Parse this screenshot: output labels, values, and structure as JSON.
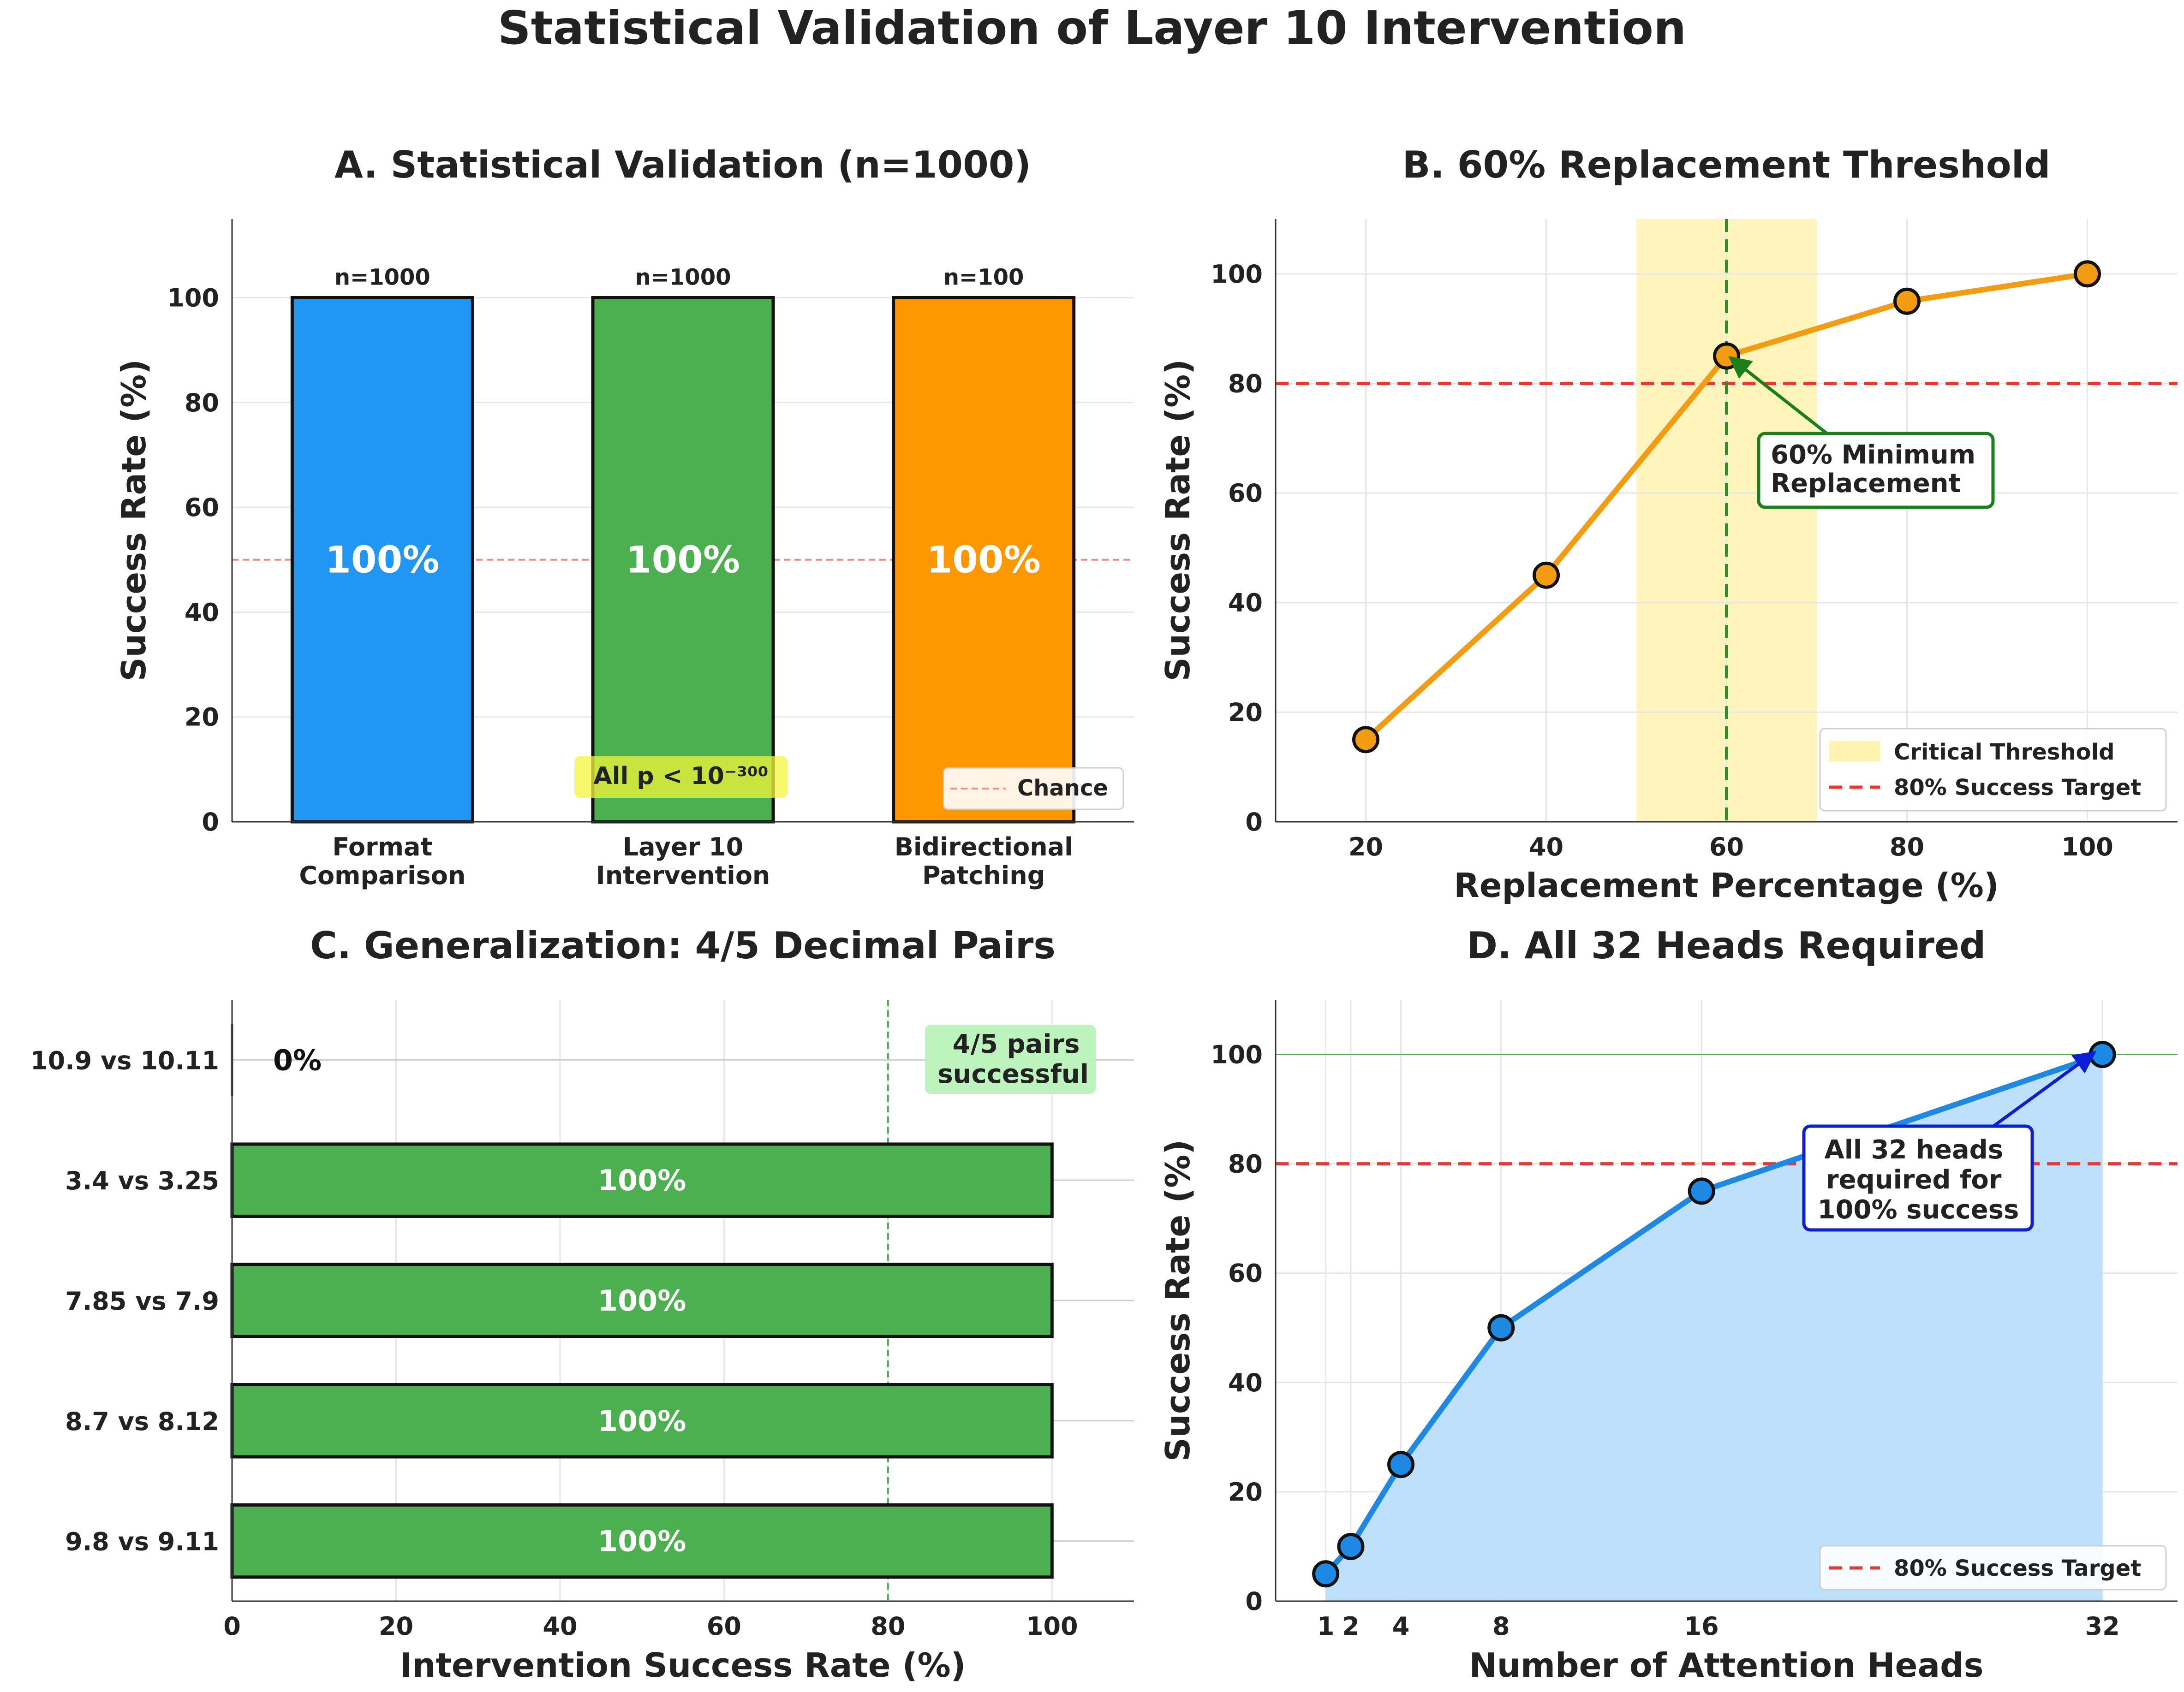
{
  "suptitle": "Statistical Validation of Layer 10 Intervention",
  "colors": {
    "blue": "#2196F3",
    "green": "#4CAF50",
    "orange": "#FF9800",
    "red_dashed": "#E53935",
    "threshold_fill": "#FFF3B0",
    "area_fill": "#BBDEFB",
    "annot_green": "#1B7F1B",
    "annot_blue": "#0D1FD6",
    "pvalue_box": "#F4F63A",
    "pairs_box": "#B9F3B9"
  },
  "chart_data": [
    {
      "id": "A",
      "type": "bar",
      "title": "A. Statistical Validation (n=1000)",
      "ylabel": "Success Rate (%)",
      "xlabel": "",
      "ylim": [
        0,
        115
      ],
      "yticks": [
        0,
        20,
        40,
        60,
        80,
        100
      ],
      "grid": true,
      "categories": [
        [
          "Format",
          "Comparison"
        ],
        [
          "Layer 10",
          "Intervention"
        ],
        [
          "Bidirectional",
          "Patching"
        ]
      ],
      "values": [
        100,
        100,
        100
      ],
      "bar_colors": [
        "#2196F3",
        "#4CAF50",
        "#FF9800"
      ],
      "value_labels": [
        "100%",
        "100%",
        "100%"
      ],
      "n_labels": [
        "n=1000",
        "n=1000",
        "n=100"
      ],
      "chance_line": 50,
      "legend": {
        "position": "lower-right",
        "entries": [
          "Chance"
        ]
      },
      "annotation": "All p < 10⁻³⁰⁰"
    },
    {
      "id": "B",
      "type": "line",
      "title": "B. 60% Replacement Threshold",
      "xlabel": "Replacement Percentage (%)",
      "ylabel": "Success Rate (%)",
      "xlim": [
        10,
        110
      ],
      "ylim": [
        0,
        110
      ],
      "xticks": [
        20,
        40,
        60,
        80,
        100
      ],
      "yticks": [
        0,
        20,
        40,
        60,
        80,
        100
      ],
      "grid": true,
      "x": [
        20,
        40,
        60,
        80,
        100
      ],
      "y": [
        15,
        45,
        85,
        95,
        100
      ],
      "threshold_band": [
        50,
        70
      ],
      "threshold_line_x": 60,
      "target_line_y": 80,
      "annotation": [
        "60% Minimum",
        "Replacement"
      ],
      "legend": {
        "position": "lower-right",
        "entries": [
          "Critical Threshold",
          "80% Success Target"
        ]
      }
    },
    {
      "id": "C",
      "type": "bar",
      "orientation": "horizontal",
      "title": "C. Generalization: 4/5 Decimal Pairs",
      "xlabel": "Intervention Success Rate (%)",
      "ylabel": "",
      "xlim": [
        0,
        110
      ],
      "xticks": [
        0,
        20,
        40,
        60,
        80,
        100
      ],
      "grid": true,
      "categories": [
        "10.9 vs 10.11",
        "3.4 vs 3.25",
        "7.85 vs 7.9",
        "8.7 vs 8.12",
        "9.8 vs 9.11"
      ],
      "values": [
        0,
        100,
        100,
        100,
        100
      ],
      "value_labels": [
        "0%",
        "100%",
        "100%",
        "100%",
        "100%"
      ],
      "reference_line_x": 80,
      "annotation": [
        "4/5 pairs",
        "successful"
      ]
    },
    {
      "id": "D",
      "type": "area",
      "title": "D. All 32 Heads Required",
      "xlabel": "Number of Attention Heads",
      "ylabel": "Success Rate (%)",
      "xlim": [
        -1,
        35
      ],
      "ylim": [
        0,
        110
      ],
      "xticks": [
        1,
        2,
        4,
        8,
        16,
        32
      ],
      "yticks": [
        0,
        20,
        40,
        60,
        80,
        100
      ],
      "grid": true,
      "x": [
        1,
        2,
        4,
        8,
        16,
        32
      ],
      "y": [
        5,
        10,
        25,
        50,
        75,
        100
      ],
      "target_line_y": 80,
      "full_line_y": 100,
      "annotation": [
        "All 32 heads",
        "required for",
        "100% success"
      ],
      "legend": {
        "position": "lower-right",
        "entries": [
          "80% Success Target"
        ]
      }
    }
  ]
}
